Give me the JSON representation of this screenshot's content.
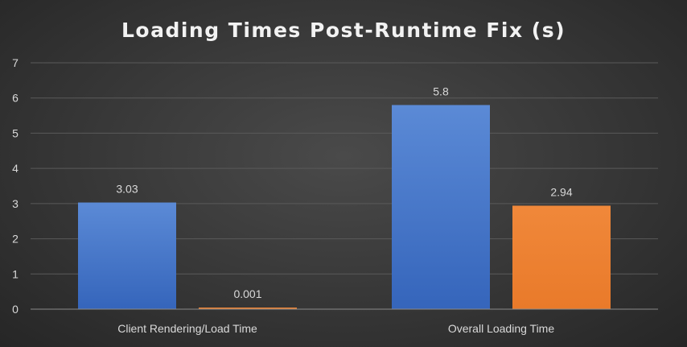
{
  "chart_data": {
    "type": "bar",
    "title": "Loading Times Post-Runtime Fix (s)",
    "xlabel": "",
    "ylabel": "",
    "categories": [
      "Client Rendering/Load Time",
      "Overall Loading Time"
    ],
    "series": [
      {
        "color": "#4472c4",
        "values": [
          3.03,
          5.8
        ]
      },
      {
        "color": "#ed7d31",
        "values": [
          0.001,
          2.94
        ]
      }
    ],
    "data_labels": [
      [
        "3.03",
        "5.8"
      ],
      [
        "0.001",
        "2.94"
      ]
    ],
    "ylim": [
      0,
      7
    ],
    "yticks": [
      "0",
      "1",
      "2",
      "3",
      "4",
      "5",
      "6",
      "7"
    ],
    "grid": true,
    "legend": "none"
  }
}
